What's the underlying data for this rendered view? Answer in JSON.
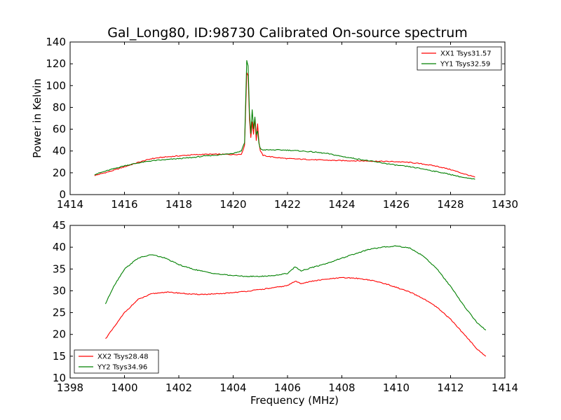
{
  "figure": {
    "title": "Gal_Long80, ID:98730 Calibrated On-source spectrum"
  },
  "chart_data": [
    {
      "type": "line",
      "ylabel": "Power in Kelvin",
      "xlabel": "",
      "xlim": [
        1414,
        1430
      ],
      "ylim": [
        0,
        140
      ],
      "xticks": [
        1414,
        1416,
        1418,
        1420,
        1422,
        1424,
        1426,
        1428,
        1430
      ],
      "yticks": [
        0,
        20,
        40,
        60,
        80,
        100,
        120,
        140
      ],
      "grid": false,
      "legend_placement": "top-right",
      "series": [
        {
          "name": "XX1 Tsys31.57",
          "color": "#ff0000",
          "x": [
            1414.9,
            1415.5,
            1416.0,
            1416.5,
            1417.0,
            1417.5,
            1418.0,
            1418.5,
            1419.0,
            1419.5,
            1420.0,
            1420.3,
            1420.42,
            1420.5,
            1420.55,
            1420.6,
            1420.65,
            1420.7,
            1420.75,
            1420.8,
            1420.85,
            1420.9,
            1420.95,
            1421.0,
            1421.1,
            1421.3,
            1421.6,
            1422.0,
            1422.5,
            1423.0,
            1423.5,
            1424.0,
            1424.5,
            1425.0,
            1425.5,
            1426.0,
            1426.5,
            1427.0,
            1427.5,
            1428.0,
            1428.5,
            1428.9
          ],
          "values": [
            17.5,
            21.5,
            25.5,
            29.5,
            33.0,
            34.5,
            35.5,
            36.5,
            37.0,
            37.0,
            36.8,
            37.0,
            45.0,
            112.0,
            109.0,
            70.0,
            52.0,
            67.0,
            55.0,
            70.0,
            50.0,
            65.0,
            48.0,
            40.0,
            36.0,
            35.0,
            34.0,
            33.0,
            32.5,
            32.0,
            31.5,
            31.2,
            31.0,
            30.8,
            30.5,
            30.2,
            29.5,
            28.0,
            26.0,
            23.0,
            19.0,
            16.0
          ]
        },
        {
          "name": "YY1 Tsys32.59",
          "color": "#008000",
          "x": [
            1414.9,
            1415.5,
            1416.0,
            1416.5,
            1417.0,
            1417.5,
            1418.0,
            1418.5,
            1419.0,
            1419.5,
            1420.0,
            1420.3,
            1420.42,
            1420.5,
            1420.55,
            1420.6,
            1420.65,
            1420.7,
            1420.75,
            1420.8,
            1420.85,
            1420.9,
            1420.95,
            1421.0,
            1421.1,
            1421.3,
            1421.6,
            1422.0,
            1422.5,
            1423.0,
            1423.5,
            1424.0,
            1424.5,
            1425.0,
            1425.5,
            1426.0,
            1426.5,
            1427.0,
            1427.5,
            1428.0,
            1428.5,
            1428.9
          ],
          "values": [
            18.5,
            23.0,
            26.5,
            29.0,
            31.0,
            32.0,
            33.0,
            34.0,
            35.5,
            36.5,
            38.0,
            40.0,
            48.0,
            123.0,
            118.0,
            75.0,
            56.0,
            78.0,
            60.0,
            71.0,
            55.0,
            58.0,
            47.0,
            42.0,
            41.0,
            41.0,
            41.0,
            40.8,
            40.0,
            39.0,
            37.5,
            35.0,
            33.0,
            31.0,
            29.0,
            27.0,
            25.5,
            23.5,
            21.0,
            18.5,
            15.5,
            14.0
          ]
        }
      ]
    },
    {
      "type": "line",
      "ylabel": "",
      "xlabel": "Frequency (MHz)",
      "xlim": [
        1398,
        1414
      ],
      "ylim": [
        10,
        45
      ],
      "xticks": [
        1398,
        1400,
        1402,
        1404,
        1406,
        1408,
        1410,
        1412,
        1414
      ],
      "yticks": [
        10,
        15,
        20,
        25,
        30,
        35,
        40,
        45
      ],
      "grid": false,
      "legend_placement": "bottom-left",
      "series": [
        {
          "name": "XX2 Tsys28.48",
          "color": "#ff0000",
          "x": [
            1399.3,
            1399.6,
            1400.0,
            1400.5,
            1401.0,
            1401.5,
            1402.0,
            1402.5,
            1403.0,
            1403.5,
            1404.0,
            1404.5,
            1405.0,
            1405.5,
            1406.0,
            1406.28,
            1406.5,
            1407.0,
            1407.5,
            1408.0,
            1408.5,
            1409.0,
            1409.5,
            1410.0,
            1410.5,
            1411.0,
            1411.5,
            1412.0,
            1412.5,
            1413.0,
            1413.3
          ],
          "values": [
            19.0,
            21.5,
            25.0,
            28.0,
            29.3,
            29.7,
            29.5,
            29.2,
            29.2,
            29.3,
            29.6,
            29.9,
            30.3,
            30.7,
            31.2,
            32.2,
            31.7,
            32.3,
            32.7,
            33.0,
            32.9,
            32.5,
            31.8,
            30.8,
            29.7,
            28.2,
            26.2,
            23.5,
            20.0,
            16.5,
            15.0
          ]
        },
        {
          "name": "YY2 Tsys34.96",
          "color": "#008000",
          "x": [
            1399.3,
            1399.6,
            1400.0,
            1400.5,
            1401.0,
            1401.5,
            1402.0,
            1402.5,
            1403.0,
            1403.5,
            1404.0,
            1404.5,
            1405.0,
            1405.5,
            1406.0,
            1406.28,
            1406.5,
            1407.0,
            1407.5,
            1408.0,
            1408.5,
            1409.0,
            1409.5,
            1410.0,
            1410.5,
            1411.0,
            1411.5,
            1412.0,
            1412.5,
            1413.0,
            1413.3
          ],
          "values": [
            27.0,
            31.0,
            35.0,
            37.5,
            38.3,
            37.5,
            36.0,
            35.0,
            34.3,
            33.8,
            33.5,
            33.3,
            33.3,
            33.5,
            34.0,
            35.5,
            34.6,
            35.5,
            36.4,
            37.5,
            38.5,
            39.5,
            40.0,
            40.3,
            39.8,
            38.0,
            35.0,
            31.0,
            26.5,
            22.5,
            21.0
          ]
        }
      ]
    }
  ]
}
